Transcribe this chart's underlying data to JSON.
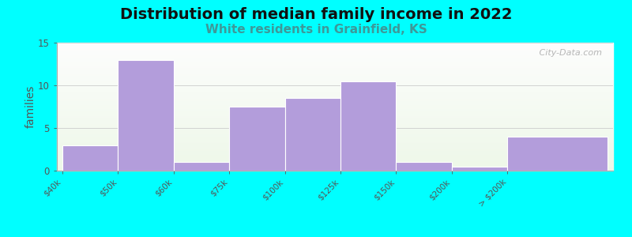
{
  "title": "Distribution of median family income in 2022",
  "subtitle": "White residents in Grainfield, KS",
  "subtitle_color": "#3d9999",
  "tick_labels": [
    "$40k",
    "$50k",
    "$60k",
    "$75k",
    "$100k",
    "$125k",
    "$150k",
    "$200k",
    "> $200k"
  ],
  "bar_lefts": [
    0,
    1,
    2,
    3,
    4,
    5,
    6,
    7,
    8
  ],
  "bar_widths": [
    1,
    1,
    1,
    1,
    1,
    1,
    1,
    1,
    1.8
  ],
  "bar_heights": [
    3,
    13,
    1,
    7.5,
    8.5,
    10.5,
    1,
    0.5,
    4
  ],
  "bar_color": "#b39ddb",
  "ylabel": "families",
  "ylim": [
    0,
    15
  ],
  "yticks": [
    0,
    5,
    10,
    15
  ],
  "background_color": "#00FFFF",
  "title_fontsize": 14,
  "subtitle_fontsize": 11,
  "ylabel_fontsize": 10,
  "watermark": " City-Data.com"
}
